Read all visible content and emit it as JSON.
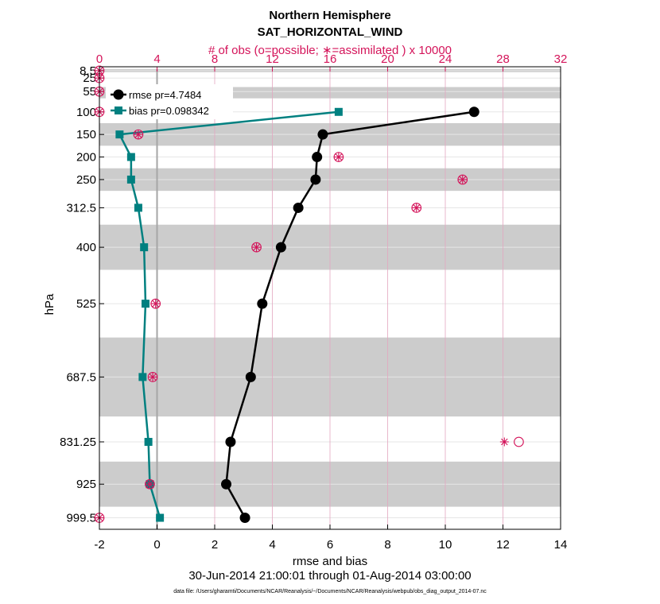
{
  "chart_data": {
    "type": "line",
    "title": "Northern Hemisphere",
    "subtitle": "SAT_HORIZONTAL_WIND",
    "top_axis_label": "# of obs (o=possible; ∗=assimilated ) x 10000",
    "xlabel": "rmse and bias",
    "ylabel": "hPa",
    "date_range": "30-Jun-2014 21:00:01 through 01-Aug-2014 03:00:00",
    "footnote": "data file: /Users/gharamti/Documents/NCAR/Reanalysis/~/Documents/NCAR/Reanalysis/webpub/obs_diag_output_2014-07.nc",
    "xlim": [
      -2,
      14
    ],
    "x_ticks": [
      "-2",
      "0",
      "2",
      "4",
      "6",
      "8",
      "10",
      "12",
      "14"
    ],
    "top_xlim": [
      0,
      32
    ],
    "top_ticks": [
      "0",
      "4",
      "8",
      "12",
      "16",
      "20",
      "24",
      "28",
      "32"
    ],
    "levels": [
      8.5,
      25,
      55,
      100,
      150,
      200,
      250,
      312.5,
      400,
      525,
      687.5,
      831.25,
      925,
      999.5
    ],
    "level_labels": [
      "8.5",
      "25",
      "55",
      "100",
      "150",
      "200",
      "250",
      "312.5",
      "400",
      "525",
      "687.5",
      "831.25",
      "925",
      "999.5"
    ],
    "bands": [
      [
        5,
        12
      ],
      [
        45,
        70
      ],
      [
        125,
        175
      ],
      [
        225,
        275
      ],
      [
        350,
        450
      ],
      [
        600,
        775
      ],
      [
        875,
        975
      ]
    ],
    "series": [
      {
        "name": "rmse pr=4.7484",
        "color": "#000000",
        "marker": "circle",
        "values": [
          null,
          null,
          null,
          11.0,
          5.75,
          5.55,
          5.5,
          4.9,
          4.3,
          3.65,
          3.25,
          2.55,
          2.4,
          3.05
        ]
      },
      {
        "name": "bias pr=0.098342",
        "color": "#008080",
        "marker": "square",
        "values": [
          null,
          null,
          null,
          6.3,
          -1.3,
          -0.9,
          -0.9,
          -0.65,
          -0.45,
          -0.4,
          -0.5,
          -0.3,
          -0.25,
          0.1
        ]
      }
    ],
    "obs_possible": [
      0.0,
      0.0,
      0.0,
      0.0,
      2.7,
      16.6,
      25.2,
      22.0,
      10.9,
      3.9,
      3.7,
      29.1,
      3.5,
      0.0
    ],
    "obs_assimilated": [
      0.0,
      0.0,
      0.0,
      0.0,
      2.7,
      16.6,
      25.2,
      22.0,
      10.9,
      3.9,
      3.7,
      28.1,
      3.5,
      0.0
    ],
    "colors": {
      "axis": "#000000",
      "obs": "#d4145a",
      "band": "#cccccc",
      "grid": "#e6e6e6",
      "zero": "#a6a6a6"
    }
  }
}
